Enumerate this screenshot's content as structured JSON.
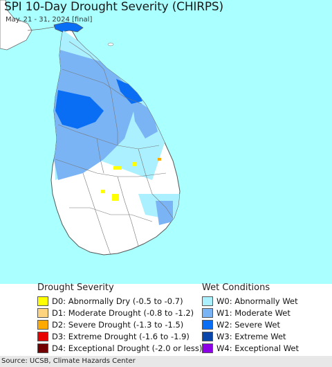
{
  "title": "SPI 10-Day Drought Severity (CHIRPS)",
  "subtitle": "May. 21 - 31, 2024 [final]",
  "colors": {
    "sea": "#aaffff",
    "land": "#ffffff",
    "border": "#666666"
  },
  "legend": {
    "drought": {
      "heading": "Drought Severity",
      "items": [
        {
          "label": "D0: Abnormally Dry (-0.5 to -0.7)",
          "color": "#ffff00"
        },
        {
          "label": "D1: Moderate Drought (-0.8 to -1.2)",
          "color": "#fcd37f"
        },
        {
          "label": "D2: Severe Drought (-1.3 to -1.5)",
          "color": "#ffaa00"
        },
        {
          "label": "D3: Extreme Drought (-1.6 to -1.9)",
          "color": "#e60000"
        },
        {
          "label": "D4: Exceptional Drought (-2.0 or less)",
          "color": "#730000"
        }
      ]
    },
    "wet": {
      "heading": "Wet Conditions",
      "items": [
        {
          "label": "W0: Abnormally Wet",
          "color": "#aaf0ff"
        },
        {
          "label": "W1: Moderate Wet",
          "color": "#7bb4f5"
        },
        {
          "label": "W2: Severe Wet",
          "color": "#0a6ef5"
        },
        {
          "label": "W3: Extreme Wet",
          "color": "#0a46aa"
        },
        {
          "label": "W4: Exceptional Wet",
          "color": "#8c00e6"
        }
      ]
    }
  },
  "source": "Source: UCSB, Climate Hazards Center"
}
